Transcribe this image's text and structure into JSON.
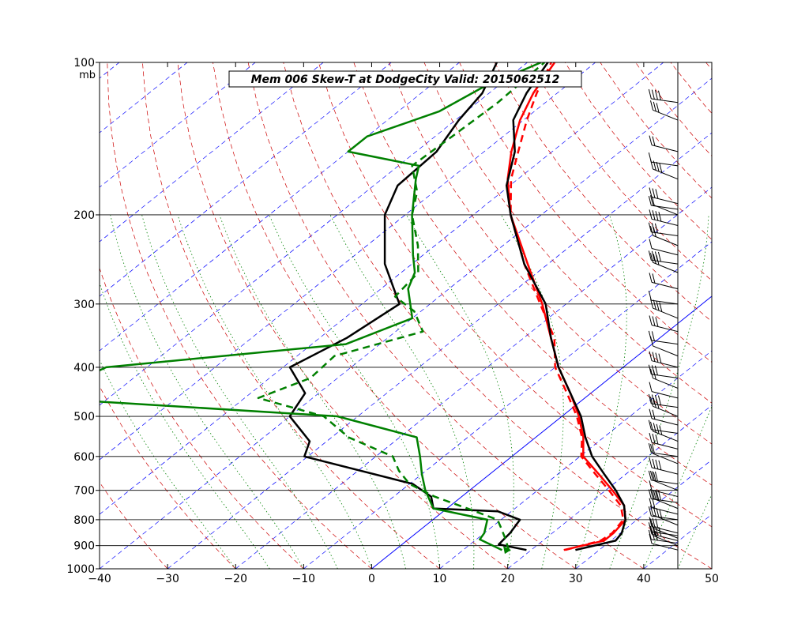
{
  "chart_data": {
    "type": "line",
    "subtype": "skew-t log-p",
    "title": "Mem 006  Skew-T at DodgeCity    Valid: 2015062512",
    "y_unit_label": "mb",
    "xlim": [
      -40,
      50
    ],
    "ylim": [
      1000,
      100
    ],
    "y_scale": "log",
    "x_ticks": [
      -40,
      -30,
      -20,
      -10,
      0,
      10,
      20,
      30,
      40,
      50
    ],
    "y_ticks": [
      100,
      200,
      300,
      400,
      500,
      600,
      700,
      800,
      900,
      1000
    ],
    "grid": true,
    "colors": {
      "temperature": "#ff0000",
      "dewpoint": "#008000",
      "ensemble_profile": "#000000",
      "isotherm": "#0000ff",
      "dry_adiabat": "#cc0000",
      "moist_adiabat": "#008000",
      "barb": "#000000"
    },
    "series": [
      {
        "role": "temperature-solid",
        "style": "solid",
        "color": "#ff0000",
        "points": [
          [
            918,
            24.8
          ],
          [
            880,
            29.0
          ],
          [
            850,
            29.0
          ],
          [
            800,
            28.3
          ],
          [
            750,
            25.5
          ],
          [
            700,
            21.0
          ],
          [
            650,
            16.0
          ],
          [
            600,
            10.5
          ],
          [
            550,
            7.0
          ],
          [
            500,
            2.5
          ],
          [
            450,
            -3.0
          ],
          [
            400,
            -9.5
          ],
          [
            350,
            -16.0
          ],
          [
            300,
            -23.5
          ],
          [
            250,
            -33.0
          ],
          [
            200,
            -44.5
          ],
          [
            170,
            -51.5
          ],
          [
            150,
            -56.0
          ],
          [
            130,
            -60.5
          ],
          [
            115,
            -63.5
          ],
          [
            100,
            -66.0
          ]
        ]
      },
      {
        "role": "temperature-dashed",
        "style": "dashed",
        "color": "#ff0000",
        "points": [
          [
            918,
            25.0
          ],
          [
            880,
            28.5
          ],
          [
            850,
            28.8
          ],
          [
            800,
            28.0
          ],
          [
            750,
            25.0
          ],
          [
            700,
            20.5
          ],
          [
            650,
            15.5
          ],
          [
            600,
            10.2
          ],
          [
            550,
            6.8
          ],
          [
            500,
            2.2
          ],
          [
            450,
            -3.5
          ],
          [
            400,
            -10.0
          ],
          [
            350,
            -15.5
          ],
          [
            300,
            -23.8
          ],
          [
            250,
            -33.5
          ],
          [
            200,
            -44.5
          ],
          [
            170,
            -51.0
          ],
          [
            150,
            -55.0
          ],
          [
            130,
            -59.5
          ],
          [
            115,
            -63.0
          ],
          [
            100,
            -66.5
          ]
        ]
      },
      {
        "role": "ensemble-profile-1",
        "style": "solid",
        "color": "#000000",
        "points": [
          [
            918,
            26.5
          ],
          [
            880,
            30.7
          ],
          [
            850,
            30.2
          ],
          [
            800,
            28.3
          ],
          [
            750,
            25.5
          ],
          [
            700,
            21.5
          ],
          [
            650,
            16.8
          ],
          [
            600,
            11.8
          ],
          [
            550,
            7.3
          ],
          [
            500,
            2.8
          ],
          [
            450,
            -3.0
          ],
          [
            400,
            -9.5
          ],
          [
            350,
            -16.0
          ],
          [
            300,
            -23.0
          ],
          [
            250,
            -33.5
          ],
          [
            200,
            -44.5
          ],
          [
            175,
            -50.5
          ],
          [
            150,
            -55.5
          ],
          [
            130,
            -61.5
          ],
          [
            115,
            -64.5
          ],
          [
            100,
            -67.0
          ]
        ]
      },
      {
        "role": "ensemble-profile-2",
        "style": "solid",
        "color": "#000000",
        "points": [
          [
            918,
            19.3
          ],
          [
            895,
            14.2
          ],
          [
            850,
            13.8
          ],
          [
            800,
            12.8
          ],
          [
            770,
            8.0
          ],
          [
            760,
            -2.0
          ],
          [
            720,
            -4.5
          ],
          [
            680,
            -9.5
          ],
          [
            600,
            -30.5
          ],
          [
            560,
            -32.5
          ],
          [
            500,
            -40.0
          ],
          [
            450,
            -42.0
          ],
          [
            400,
            -49.0
          ],
          [
            350,
            -46.0
          ],
          [
            300,
            -44.5
          ],
          [
            250,
            -54.0
          ],
          [
            200,
            -63.0
          ],
          [
            175,
            -66.5
          ],
          [
            150,
            -67.0
          ],
          [
            130,
            -69.5
          ],
          [
            115,
            -71.0
          ],
          [
            100,
            -74.5
          ]
        ]
      },
      {
        "role": "dewpoint-solid",
        "style": "solid",
        "color": "#008000",
        "points": [
          [
            918,
            15.7
          ],
          [
            875,
            10.5
          ],
          [
            850,
            10.0
          ],
          [
            800,
            8.0
          ],
          [
            760,
            -2.0
          ],
          [
            700,
            -6.5
          ],
          [
            650,
            -10.0
          ],
          [
            600,
            -13.5
          ],
          [
            550,
            -17.5
          ],
          [
            500,
            -33.0
          ],
          [
            460,
            -80.0
          ],
          [
            400,
            -76.0
          ],
          [
            360,
            -45.0
          ],
          [
            320,
            -40.0
          ],
          [
            280,
            -46.0
          ],
          [
            260,
            -48.0
          ],
          [
            240,
            -51.5
          ],
          [
            200,
            -59.0
          ],
          [
            170,
            -65.0
          ],
          [
            160,
            -67.0
          ],
          [
            150,
            -80.0
          ],
          [
            140,
            -80.0
          ],
          [
            125,
            -74.0
          ],
          [
            112,
            -72.0
          ],
          [
            100,
            -68.0
          ]
        ]
      },
      {
        "role": "dewpoint-dashed",
        "style": "dashed",
        "color": "#008000",
        "points": [
          [
            918,
            16.7
          ],
          [
            870,
            14.0
          ],
          [
            830,
            11.5
          ],
          [
            800,
            9.5
          ],
          [
            760,
            3.0
          ],
          [
            720,
            -4.0
          ],
          [
            680,
            -10.0
          ],
          [
            640,
            -14.0
          ],
          [
            600,
            -17.5
          ],
          [
            550,
            -27.5
          ],
          [
            500,
            -35.0
          ],
          [
            460,
            -48.0
          ],
          [
            420,
            -44.0
          ],
          [
            380,
            -44.5
          ],
          [
            340,
            -36.0
          ],
          [
            310,
            -41.0
          ],
          [
            290,
            -46.5
          ],
          [
            260,
            -47.5
          ],
          [
            230,
            -52.5
          ],
          [
            200,
            -59.0
          ],
          [
            180,
            -62.5
          ],
          [
            160,
            -68.0
          ],
          [
            140,
            -67.5
          ],
          [
            120,
            -67.0
          ],
          [
            100,
            -67.5
          ]
        ]
      }
    ],
    "wind_barbs": {
      "column": "right-edge",
      "levels_mb": [
        918,
        900,
        890,
        880,
        870,
        860,
        850,
        820,
        800,
        780,
        760,
        740,
        720,
        700,
        680,
        650,
        620,
        600,
        580,
        560,
        540,
        520,
        500,
        480,
        460,
        440,
        420,
        400,
        380,
        360,
        340,
        320,
        300,
        280,
        260,
        250,
        240,
        230,
        220,
        210,
        200,
        195,
        190,
        170,
        160,
        150,
        130,
        120
      ]
    }
  }
}
